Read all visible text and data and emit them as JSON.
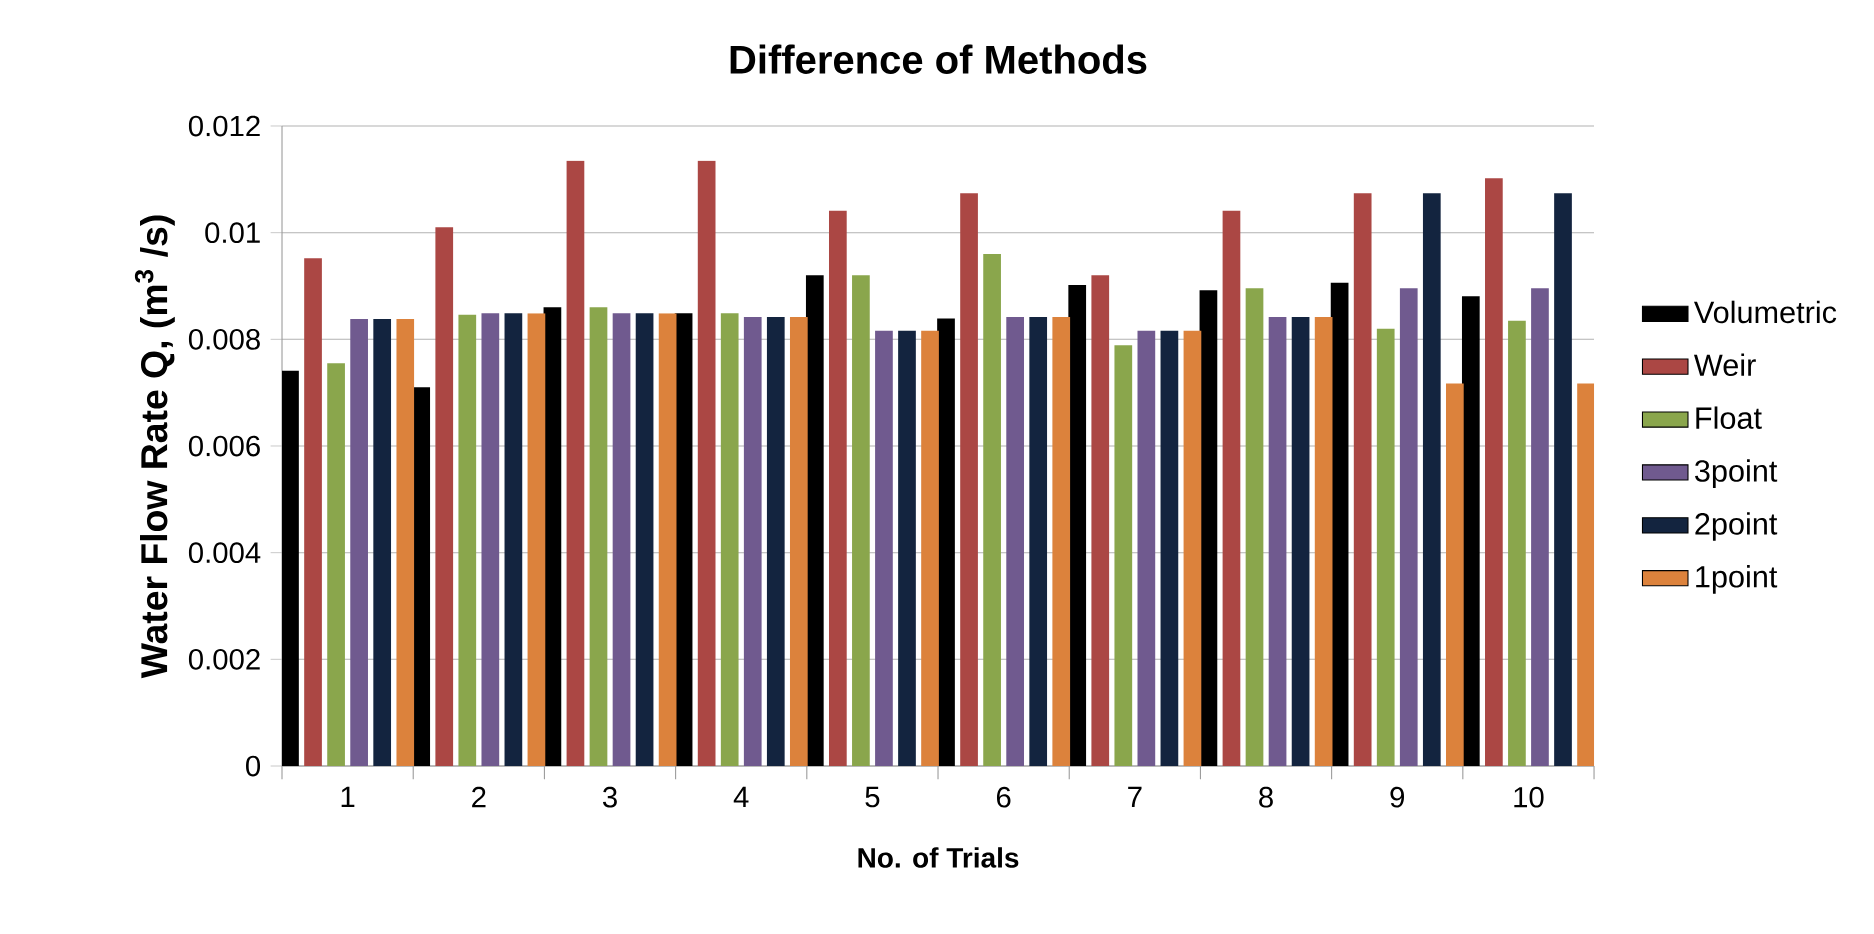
{
  "chart_data": {
    "type": "bar",
    "title": "Difference of Methods",
    "xlabel": "No. of Trials",
    "ylabel": "Water Flow Rate Q, (m$^{3}$ /s)",
    "categories": [
      "1",
      "2",
      "3",
      "4",
      "5",
      "6",
      "7",
      "8",
      "9",
      "10"
    ],
    "series": [
      {
        "name": "Volumetric",
        "color": "#000000",
        "values": [
          0.00741,
          0.0071,
          0.0086,
          0.00849,
          0.0092,
          0.00839,
          0.00902,
          0.00892,
          0.00906,
          0.00881
        ]
      },
      {
        "name": "Weir",
        "color": "#ab4744",
        "values": [
          0.00952,
          0.0101,
          0.01135,
          0.01135,
          0.01041,
          0.01074,
          0.0092,
          0.01041,
          0.01074,
          0.01102
        ]
      },
      {
        "name": "Float",
        "color": "#8aa64c",
        "values": [
          0.00755,
          0.00846,
          0.0086,
          0.00849,
          0.0092,
          0.0096,
          0.00789,
          0.00896,
          0.0082,
          0.00835
        ]
      },
      {
        "name": "3point",
        "color": "#705a8f",
        "values": [
          0.00838,
          0.00849,
          0.00849,
          0.00842,
          0.00816,
          0.00842,
          0.00816,
          0.00842,
          0.00896,
          0.00896
        ]
      },
      {
        "name": "2point",
        "color": "#13243f",
        "values": [
          0.00838,
          0.00849,
          0.00849,
          0.00842,
          0.00816,
          0.00842,
          0.00816,
          0.00842,
          0.01074,
          0.01074
        ]
      },
      {
        "name": "1point",
        "color": "#dc823c",
        "values": [
          0.00838,
          0.00849,
          0.00849,
          0.00842,
          0.00816,
          0.00842,
          0.00816,
          0.00842,
          0.00717,
          0.00717
        ]
      }
    ],
    "ylim": [
      0,
      0.012
    ],
    "yticks": [
      0,
      0.002,
      0.004,
      0.006,
      0.008,
      0.01,
      0.012
    ],
    "grid": "y",
    "legend": "right"
  }
}
